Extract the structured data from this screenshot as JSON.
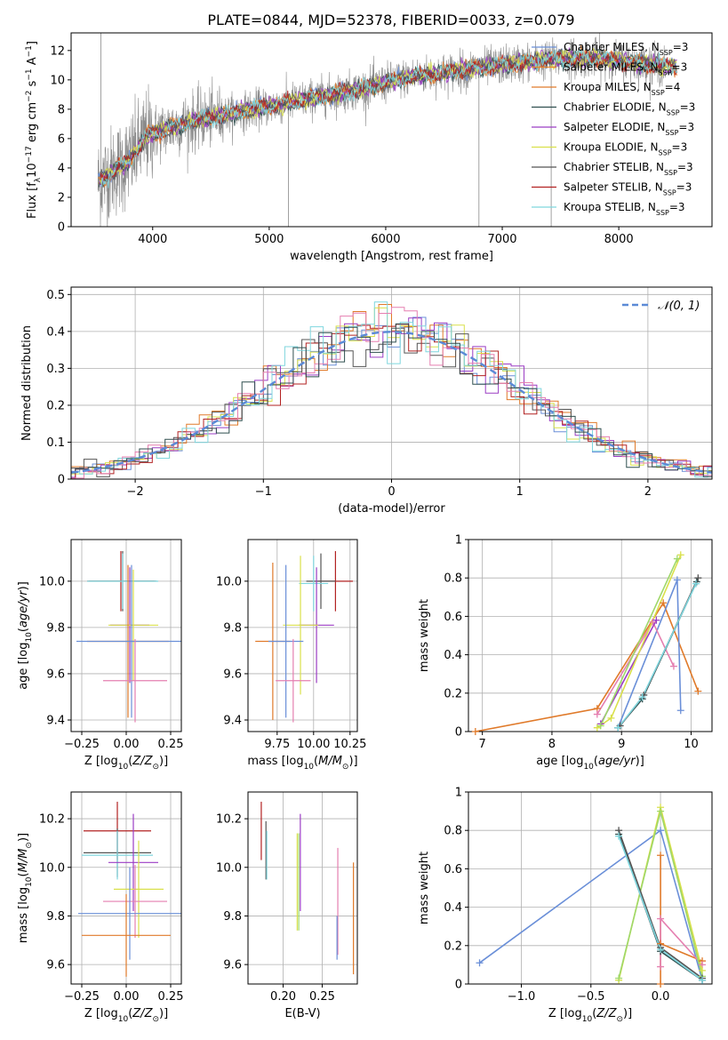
{
  "figure": {
    "title": "PLATE=0844, MJD=52378, FIBERID=0033, z=0.079"
  },
  "palette": {
    "Chabrier MILES": "#6a8fd8",
    "Salpeter MILES": "#e8832a",
    "Kroupa MILES": "#e07a2a",
    "Chabrier ELODIE": "#2f4f4f",
    "Salpeter ELODIE": "#9b3dc4",
    "Kroupa ELODIE": "#d9e04a",
    "Chabrier STELIB": "#555555",
    "Salpeter STELIB": "#b22222",
    "Kroupa STELIB": "#7fd6de",
    "extra_pink": "#e57fb0",
    "extra_green": "#9fd86a",
    "extra_teal": "#4a8f8f",
    "data_gray": "#8a8a8a",
    "gaussian": "#5b8ad6"
  },
  "chart_data": [
    {
      "id": "spectrum",
      "type": "line",
      "title": "PLATE=0844, MJD=52378, FIBERID=0033, z=0.079",
      "xlabel": "wavelength [Angstrom, rest frame]",
      "ylabel": "Flux [f_λ10^-17 erg cm^-2 s^-1 A^-1]",
      "xlim": [
        3300,
        8800
      ],
      "ylim": [
        0,
        13.2
      ],
      "xticks": [
        4000,
        5000,
        6000,
        7000,
        8000
      ],
      "yticks": [
        0,
        2,
        4,
        6,
        8,
        10,
        12
      ],
      "legend_position": "upper-right",
      "legend": [
        {
          "model": "Chabrier MILES",
          "label": "Chabrier MILES, N",
          "n": "3"
        },
        {
          "model": "Salpeter MILES",
          "label": "Salpeter MILES, N",
          "n": "3"
        },
        {
          "model": "Kroupa MILES",
          "label": "Kroupa MILES, N",
          "n": "4"
        },
        {
          "model": "Chabrier ELODIE",
          "label": "Chabrier ELODIE, N",
          "n": "3"
        },
        {
          "model": "Salpeter ELODIE",
          "label": "Salpeter ELODIE, N",
          "n": "3"
        },
        {
          "model": "Kroupa ELODIE",
          "label": "Kroupa ELODIE, N",
          "n": "3"
        },
        {
          "model": "Chabrier STELIB",
          "label": "Chabrier STELIB, N",
          "n": "3"
        },
        {
          "model": "Salpeter STELIB",
          "label": "Salpeter STELIB, N",
          "n": "3"
        },
        {
          "model": "Kroupa STELIB",
          "label": "Kroupa STELIB, N",
          "n": "3"
        }
      ],
      "legend_subscript": "SSP",
      "continuum_anchors": {
        "x": [
          3530,
          3700,
          3800,
          3950,
          4100,
          4300,
          4600,
          5000,
          5400,
          5800,
          6200,
          6600,
          7000,
          7400,
          7800,
          8400
        ],
        "y": [
          3.0,
          4.0,
          4.5,
          6.2,
          6.6,
          7.1,
          7.6,
          8.2,
          8.8,
          9.4,
          10.2,
          10.6,
          11.0,
          11.4,
          11.5,
          10.9
        ]
      },
      "data_range": [
        3530,
        8400
      ],
      "model_range": [
        3530,
        8500
      ],
      "spikes": [
        {
          "x": 3555,
          "y": 13.2
        },
        {
          "x": 5165,
          "y": 0
        },
        {
          "x": 6800,
          "y": 0
        },
        {
          "x": 7420,
          "y": 0
        }
      ]
    },
    {
      "id": "residuals",
      "type": "bar",
      "xlabel": "(data-model)/error",
      "ylabel": "Normed distribution",
      "xlim": [
        -2.5,
        2.5
      ],
      "ylim": [
        0,
        0.52
      ],
      "xticks": [
        -2,
        -1,
        0,
        1,
        2
      ],
      "yticks": [
        0.0,
        0.1,
        0.2,
        0.3,
        0.4,
        0.5
      ],
      "legend": [
        {
          "label": "𝒩(0, 1)",
          "style": "dashed"
        }
      ],
      "legend_position": "upper-right",
      "bin_width": 0.1,
      "gaussian": {
        "mu": 0,
        "sigma": 1
      }
    },
    {
      "id": "age-vs-Z",
      "type": "scatter",
      "xlabel": "Z [log10(Z/Z⊙)]",
      "ylabel": "age  [log10(age/yr)]",
      "xlim": [
        -0.31,
        0.31
      ],
      "ylim": [
        9.35,
        10.18
      ],
      "xticks": [
        -0.25,
        0.0,
        0.25
      ],
      "xticklabels": [
        "−0.25",
        "0.00",
        "0.25"
      ],
      "yticks": [
        9.4,
        9.6,
        9.8,
        10.0
      ],
      "points": [
        {
          "model": "Salpeter STELIB",
          "x": -0.03,
          "xerr": 0.19,
          "y": 10.0,
          "yerr": 0.13
        },
        {
          "model": "Chabrier STELIB",
          "x": -0.02,
          "xerr": 0.19,
          "y": 10.0,
          "yerr": 0.13
        },
        {
          "model": "Kroupa STELIB",
          "x": -0.02,
          "xerr": 0.2,
          "y": 10.0,
          "yerr": 0.12
        },
        {
          "model": "Salpeter ELODIE",
          "x": 0.02,
          "xerr": 0.11,
          "y": 9.81,
          "yerr": 0.25
        },
        {
          "model": "Kroupa ELODIE",
          "x": 0.04,
          "xerr": 0.14,
          "y": 9.81,
          "yerr": 0.24
        },
        {
          "model": "Kroupa MILES",
          "x": 0.01,
          "xerr": 0.23,
          "y": 9.74,
          "yerr": 0.33
        },
        {
          "model": "Chabrier MILES",
          "x": 0.03,
          "xerr": 0.31,
          "y": 9.74,
          "yerr": 0.33
        },
        {
          "model": "extra_pink",
          "x": 0.05,
          "xerr": 0.18,
          "y": 9.57,
          "yerr": 0.18
        }
      ]
    },
    {
      "id": "age-vs-mass",
      "type": "scatter",
      "xlabel": "mass [log10(M/M⊙)]",
      "ylabel": "",
      "xlim": [
        9.55,
        10.3
      ],
      "ylim": [
        9.35,
        10.18
      ],
      "xticks": [
        9.75,
        10.0,
        10.25
      ],
      "xticklabels": [
        "9.75",
        "10.00",
        "10.25"
      ],
      "yticks": [
        9.4,
        9.6,
        9.8,
        10.0
      ],
      "points": [
        {
          "model": "Salpeter STELIB",
          "x": 10.15,
          "xerr": 0.12,
          "y": 10.0,
          "yerr": 0.13
        },
        {
          "model": "Chabrier STELIB",
          "x": 10.05,
          "xerr": 0.1,
          "y": 10.0,
          "yerr": 0.12
        },
        {
          "model": "Kroupa STELIB",
          "x": 10.0,
          "xerr": 0.1,
          "y": 9.99,
          "yerr": 0.12
        },
        {
          "model": "Salpeter ELODIE",
          "x": 10.02,
          "xerr": 0.12,
          "y": 9.81,
          "yerr": 0.25
        },
        {
          "model": "Kroupa ELODIE",
          "x": 9.91,
          "xerr": 0.12,
          "y": 9.81,
          "yerr": 0.3
        },
        {
          "model": "Kroupa MILES",
          "x": 9.72,
          "xerr": 0.12,
          "y": 9.74,
          "yerr": 0.34
        },
        {
          "model": "Chabrier MILES",
          "x": 9.81,
          "xerr": 0.12,
          "y": 9.74,
          "yerr": 0.33
        },
        {
          "model": "extra_pink",
          "x": 9.86,
          "xerr": 0.12,
          "y": 9.57,
          "yerr": 0.18
        }
      ]
    },
    {
      "id": "weight-vs-age",
      "type": "line",
      "xlabel": "age  [log10(age/yr)]",
      "ylabel": "mass weight",
      "xlim": [
        6.8,
        10.3
      ],
      "ylim": [
        0,
        1
      ],
      "xticks": [
        7,
        8,
        9,
        10
      ],
      "yticks": [
        0.0,
        0.2,
        0.4,
        0.6,
        0.8,
        1.0
      ],
      "series": [
        {
          "model": "Kroupa MILES",
          "x": [
            6.9,
            8.65,
            9.6,
            10.1
          ],
          "y": [
            0.0,
            0.12,
            0.67,
            0.21
          ]
        },
        {
          "model": "Chabrier MILES",
          "x": [
            8.95,
            9.8,
            9.85
          ],
          "y": [
            0.02,
            0.79,
            0.11
          ]
        },
        {
          "model": "extra_pink",
          "x": [
            8.65,
            9.45,
            9.75
          ],
          "y": [
            0.09,
            0.57,
            0.34
          ]
        },
        {
          "model": "Salpeter ELODIE",
          "x": [
            8.7,
            9.5
          ],
          "y": [
            0.04,
            0.58
          ]
        },
        {
          "model": "Kroupa ELODIE",
          "x": [
            8.65,
            8.85,
            9.85
          ],
          "y": [
            0.02,
            0.07,
            0.92
          ]
        },
        {
          "model": "extra_green",
          "x": [
            8.7,
            9.8
          ],
          "y": [
            0.03,
            0.9
          ]
        },
        {
          "model": "Chabrier ELODIE",
          "x": [
            8.95,
            9.3,
            10.08
          ],
          "y": [
            0.02,
            0.17,
            0.78
          ]
        },
        {
          "model": "Chabrier STELIB",
          "x": [
            8.98,
            9.32,
            10.1
          ],
          "y": [
            0.03,
            0.19,
            0.8
          ]
        },
        {
          "model": "Kroupa STELIB",
          "x": [
            8.95,
            9.3,
            10.07
          ],
          "y": [
            0.02,
            0.18,
            0.77
          ]
        }
      ]
    },
    {
      "id": "mass-vs-Z",
      "type": "scatter",
      "xlabel": "Z [log10(Z/Z⊙)]",
      "ylabel": "mass [log10(M/M⊙)]",
      "xlim": [
        -0.31,
        0.31
      ],
      "ylim": [
        9.52,
        10.31
      ],
      "xticks": [
        -0.25,
        0.0,
        0.25
      ],
      "xticklabels": [
        "−0.25",
        "0.00",
        "0.25"
      ],
      "yticks": [
        9.6,
        9.8,
        10.0,
        10.2
      ],
      "points": [
        {
          "model": "Salpeter STELIB",
          "x": -0.05,
          "xerr": 0.19,
          "y": 10.15,
          "yerr": 0.12
        },
        {
          "model": "Chabrier STELIB",
          "x": -0.05,
          "xerr": 0.19,
          "y": 10.06,
          "yerr": 0.1
        },
        {
          "model": "Kroupa STELIB",
          "x": -0.05,
          "xerr": 0.2,
          "y": 10.05,
          "yerr": 0.1
        },
        {
          "model": "Salpeter ELODIE",
          "x": 0.04,
          "xerr": 0.14,
          "y": 10.02,
          "yerr": 0.2
        },
        {
          "model": "Kroupa ELODIE",
          "x": 0.07,
          "xerr": 0.14,
          "y": 9.91,
          "yerr": 0.2
        },
        {
          "model": "extra_pink",
          "x": 0.05,
          "xerr": 0.18,
          "y": 9.86,
          "yerr": 0.15
        },
        {
          "model": "Chabrier MILES",
          "x": 0.02,
          "xerr": 0.29,
          "y": 9.81,
          "yerr": 0.19
        },
        {
          "model": "Kroupa MILES",
          "x": 0.0,
          "xerr": 0.25,
          "y": 9.72,
          "yerr": 0.17
        }
      ]
    },
    {
      "id": "mass-vs-ebv",
      "type": "scatter",
      "xlabel": "E(B-V)",
      "ylabel": "",
      "xlim": [
        0.155,
        0.295
      ],
      "ylim": [
        9.52,
        10.31
      ],
      "xticks": [
        0.2,
        0.25
      ],
      "xticklabels": [
        "0.20",
        "0.25"
      ],
      "yticks": [
        9.6,
        9.8,
        10.0,
        10.2
      ],
      "points": [
        {
          "model": "Salpeter STELIB",
          "x": 0.172,
          "y": 10.15,
          "yerr": 0.12
        },
        {
          "model": "Chabrier STELIB",
          "x": 0.178,
          "y": 10.07,
          "yerr": 0.12
        },
        {
          "model": "Kroupa STELIB",
          "x": 0.179,
          "y": 10.05,
          "yerr": 0.1
        },
        {
          "model": "Salpeter ELODIE",
          "x": 0.222,
          "y": 10.02,
          "yerr": 0.2
        },
        {
          "model": "Kroupa ELODIE",
          "x": 0.218,
          "y": 9.94,
          "yerr": 0.2
        },
        {
          "model": "extra_green",
          "x": 0.22,
          "y": 9.94,
          "yerr": 0.2
        },
        {
          "model": "extra_pink",
          "x": 0.27,
          "y": 9.86,
          "yerr": 0.22
        },
        {
          "model": "Chabrier MILES",
          "x": 0.269,
          "y": 9.71,
          "yerr": 0.09
        },
        {
          "model": "Kroupa MILES",
          "x": 0.29,
          "y": 9.79,
          "yerr": 0.23
        }
      ]
    },
    {
      "id": "weight-vs-Z",
      "type": "line",
      "xlabel": "Z [log10(Z/Z⊙)]",
      "ylabel": "mass weight",
      "xlim": [
        -1.38,
        0.37
      ],
      "ylim": [
        0,
        1
      ],
      "xticks": [
        -1.0,
        -0.5,
        0.0
      ],
      "xticklabels": [
        "−1.0",
        "−0.5",
        "0.0"
      ],
      "yticks": [
        0.0,
        0.2,
        0.4,
        0.6,
        0.8,
        1.0
      ],
      "series": [
        {
          "model": "Chabrier MILES",
          "x": [
            -1.3,
            0.0,
            0.3
          ],
          "y": [
            0.11,
            0.8,
            0.02
          ]
        },
        {
          "model": "Kroupa MILES",
          "x": [
            0.0,
            0.0,
            0.0,
            0.3
          ],
          "y": [
            0.0,
            0.67,
            0.21,
            0.12
          ]
        },
        {
          "model": "extra_pink",
          "x": [
            0.0,
            0.0,
            0.3
          ],
          "y": [
            0.09,
            0.34,
            0.1
          ]
        },
        {
          "model": "Kroupa ELODIE",
          "x": [
            -0.3,
            0.0,
            0.3
          ],
          "y": [
            0.02,
            0.92,
            0.07
          ]
        },
        {
          "model": "extra_green",
          "x": [
            -0.3,
            0.0,
            0.3
          ],
          "y": [
            0.03,
            0.9,
            0.04
          ]
        },
        {
          "model": "Chabrier ELODIE",
          "x": [
            -0.3,
            0.0,
            0.3
          ],
          "y": [
            0.78,
            0.17,
            0.02
          ]
        },
        {
          "model": "Chabrier STELIB",
          "x": [
            -0.3,
            0.0,
            0.3
          ],
          "y": [
            0.8,
            0.19,
            0.03
          ]
        },
        {
          "model": "Kroupa STELIB",
          "x": [
            -0.3,
            0.0,
            0.3
          ],
          "y": [
            0.77,
            0.18,
            0.02
          ]
        }
      ]
    }
  ]
}
